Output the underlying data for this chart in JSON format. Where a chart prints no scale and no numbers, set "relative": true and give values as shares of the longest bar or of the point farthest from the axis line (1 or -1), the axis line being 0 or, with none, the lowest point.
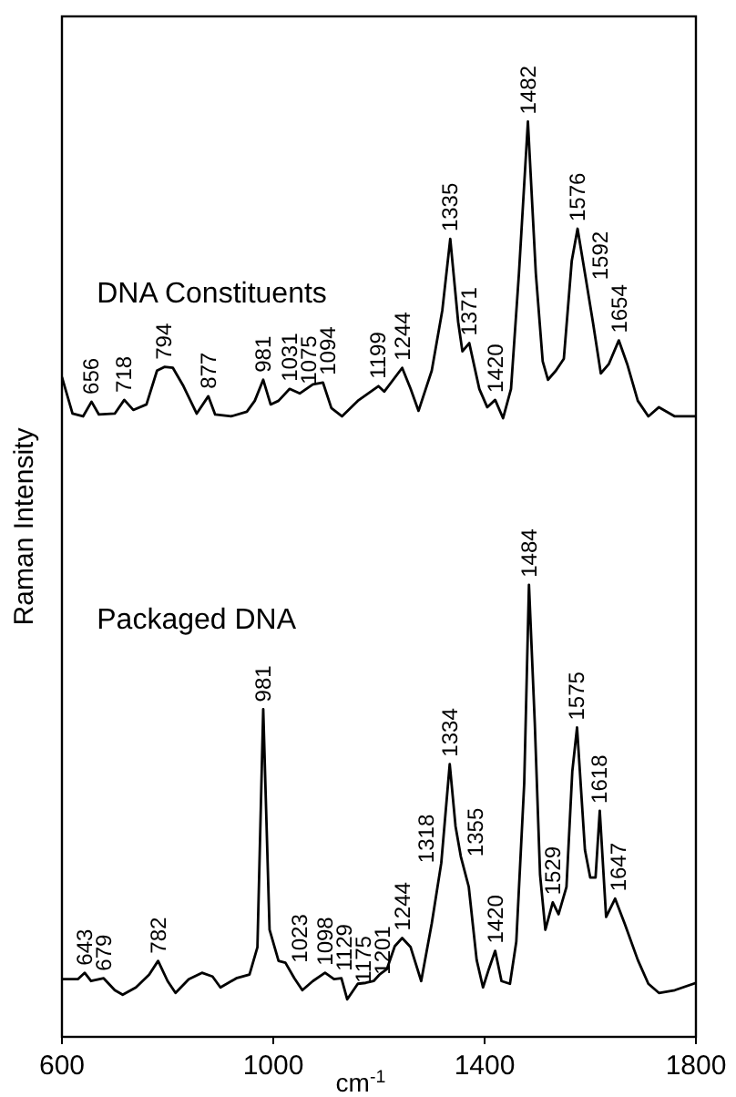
{
  "chart_data": {
    "type": "line",
    "relative": true,
    "xlabel": "cm$^{-1}$",
    "ylabel": "Raman Intensity",
    "xlim": [
      600,
      1800
    ],
    "xticks": [
      600,
      1000,
      1400,
      1800
    ],
    "series": [
      {
        "name": "DNA Constituents",
        "color": "#000000",
        "x": [
          600,
          620,
          640,
          656,
          670,
          700,
          718,
          735,
          760,
          780,
          794,
          810,
          830,
          855,
          877,
          890,
          920,
          950,
          965,
          981,
          995,
          1010,
          1031,
          1050,
          1075,
          1094,
          1110,
          1130,
          1160,
          1199,
          1210,
          1244,
          1260,
          1275,
          1300,
          1320,
          1335,
          1350,
          1358,
          1371,
          1390,
          1405,
          1420,
          1435,
          1450,
          1465,
          1482,
          1497,
          1510,
          1520,
          1535,
          1550,
          1565,
          1576,
          1592,
          1605,
          1620,
          1635,
          1654,
          1670,
          1690,
          1710,
          1730,
          1760,
          1800
        ],
        "values": [
          0.721,
          0.681,
          0.678,
          0.694,
          0.68,
          0.681,
          0.696,
          0.685,
          0.691,
          0.728,
          0.732,
          0.731,
          0.711,
          0.681,
          0.7,
          0.68,
          0.678,
          0.683,
          0.695,
          0.718,
          0.691,
          0.695,
          0.708,
          0.703,
          0.713,
          0.715,
          0.687,
          0.678,
          0.695,
          0.711,
          0.705,
          0.731,
          0.708,
          0.684,
          0.728,
          0.794,
          0.872,
          0.781,
          0.749,
          0.758,
          0.708,
          0.688,
          0.696,
          0.676,
          0.708,
          0.834,
          1.0,
          0.834,
          0.738,
          0.718,
          0.728,
          0.741,
          0.848,
          0.883,
          0.827,
          0.781,
          0.725,
          0.735,
          0.761,
          0.735,
          0.695,
          0.678,
          0.688,
          0.678,
          0.678
        ]
      },
      {
        "name": "Packaged DNA",
        "color": "#000000",
        "x": [
          600,
          630,
          643,
          655,
          679,
          700,
          715,
          740,
          765,
          782,
          800,
          815,
          840,
          865,
          885,
          900,
          930,
          955,
          970,
          981,
          993,
          1010,
          1023,
          1040,
          1055,
          1075,
          1098,
          1115,
          1129,
          1140,
          1160,
          1175,
          1190,
          1201,
          1215,
          1230,
          1244,
          1260,
          1280,
          1300,
          1318,
          1334,
          1345,
          1355,
          1370,
          1385,
          1397,
          1408,
          1420,
          1432,
          1448,
          1460,
          1475,
          1484,
          1495,
          1505,
          1515,
          1529,
          1540,
          1555,
          1566,
          1575,
          1590,
          1600,
          1610,
          1618,
          1630,
          1647,
          1665,
          1690,
          1710,
          1730,
          1760,
          1800
        ],
        "values": [
          0.063,
          0.063,
          0.07,
          0.061,
          0.064,
          0.051,
          0.046,
          0.054,
          0.068,
          0.083,
          0.061,
          0.048,
          0.063,
          0.07,
          0.066,
          0.054,
          0.064,
          0.068,
          0.098,
          0.358,
          0.117,
          0.083,
          0.081,
          0.064,
          0.051,
          0.061,
          0.07,
          0.063,
          0.064,
          0.041,
          0.058,
          0.059,
          0.061,
          0.068,
          0.074,
          0.099,
          0.108,
          0.098,
          0.061,
          0.124,
          0.19,
          0.298,
          0.23,
          0.197,
          0.164,
          0.084,
          0.054,
          0.074,
          0.094,
          0.061,
          0.058,
          0.104,
          0.277,
          0.494,
          0.343,
          0.177,
          0.117,
          0.147,
          0.134,
          0.164,
          0.29,
          0.338,
          0.204,
          0.174,
          0.174,
          0.247,
          0.131,
          0.151,
          0.124,
          0.084,
          0.058,
          0.048,
          0.051,
          0.059
        ]
      }
    ],
    "annotations": [
      {
        "text": "656",
        "x": 656,
        "y": 0.694
      },
      {
        "text": "718",
        "x": 718,
        "y": 0.696
      },
      {
        "text": "794",
        "x": 794,
        "y": 0.732
      },
      {
        "text": "877",
        "x": 877,
        "y": 0.7
      },
      {
        "text": "981",
        "x": 981,
        "y": 0.718
      },
      {
        "text": "1031",
        "x": 1031,
        "y": 0.708
      },
      {
        "text": "1075",
        "x": 1075,
        "y": 0.713
      },
      {
        "text": "1094",
        "x": 1094,
        "y": 0.715
      },
      {
        "text": "1199",
        "x": 1199,
        "y": 0.711
      },
      {
        "text": "1244",
        "x": 1244,
        "y": 0.731
      },
      {
        "text": "1335",
        "x": 1335,
        "y": 0.872
      },
      {
        "text": "1371",
        "x": 1371,
        "y": 0.758
      },
      {
        "text": "1420",
        "x": 1420,
        "y": 0.696
      },
      {
        "text": "1482",
        "x": 1482,
        "y": 1.0
      },
      {
        "text": "1576",
        "x": 1576,
        "y": 0.883
      },
      {
        "text": "1592",
        "x": 1592,
        "y": 0.827
      },
      {
        "text": "1654",
        "x": 1654,
        "y": 0.761
      },
      {
        "text": "643",
        "x": 643,
        "y": 0.07
      },
      {
        "text": "679",
        "x": 679,
        "y": 0.064
      },
      {
        "text": "782",
        "x": 782,
        "y": 0.083
      },
      {
        "text": "981",
        "x": 981,
        "y": 0.358
      },
      {
        "text": "1023",
        "x": 1023,
        "y": 0.081
      },
      {
        "text": "1098",
        "x": 1098,
        "y": 0.07
      },
      {
        "text": "1129",
        "x": 1129,
        "y": 0.064
      },
      {
        "text": "1175",
        "x": 1175,
        "y": 0.059
      },
      {
        "text": "1201",
        "x": 1201,
        "y": 0.068
      },
      {
        "text": "1244",
        "x": 1244,
        "y": 0.108
      },
      {
        "text": "1318",
        "x": 1318,
        "y": 0.19
      },
      {
        "text": "1334",
        "x": 1334,
        "y": 0.298
      },
      {
        "text": "1355",
        "x": 1355,
        "y": 0.197
      },
      {
        "text": "1420",
        "x": 1420,
        "y": 0.094
      },
      {
        "text": "1484",
        "x": 1484,
        "y": 0.494
      },
      {
        "text": "1529",
        "x": 1529,
        "y": 0.147
      },
      {
        "text": "1575",
        "x": 1575,
        "y": 0.338
      },
      {
        "text": "1618",
        "x": 1618,
        "y": 0.247
      },
      {
        "text": "1647",
        "x": 1647,
        "y": 0.151
      }
    ]
  }
}
